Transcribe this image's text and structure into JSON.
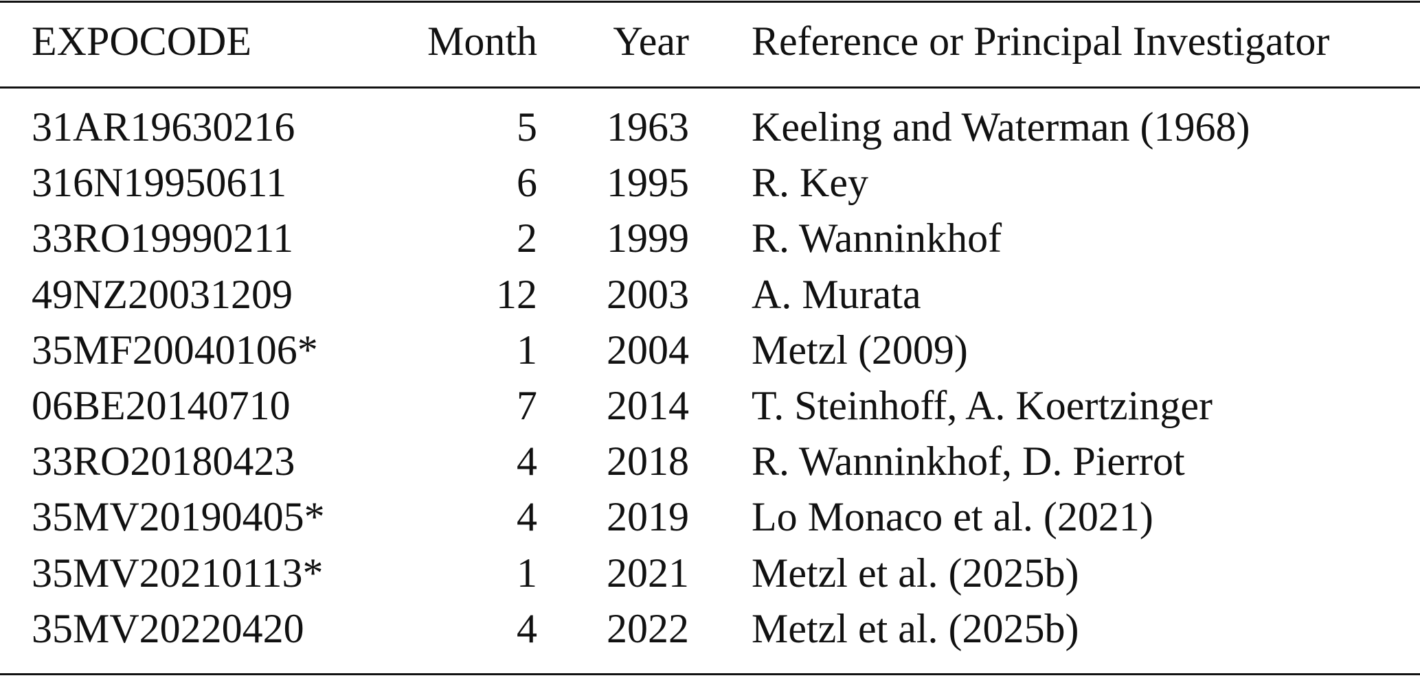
{
  "table": {
    "header": [
      "EXPOCODE",
      "Month",
      "Year",
      "Reference or Principal Investigator"
    ],
    "rows": [
      [
        "31AR19630216",
        5,
        1963,
        "Keeling and Waterman (1968)"
      ],
      [
        "316N19950611",
        6,
        1995,
        "R. Key"
      ],
      [
        "33RO19990211",
        2,
        1999,
        "R. Wanninkhof"
      ],
      [
        "49NZ20031209",
        12,
        2003,
        "A. Murata"
      ],
      [
        "35MF20040106*",
        1,
        2004,
        "Metzl (2009)"
      ],
      [
        "06BE20140710",
        7,
        2014,
        "T. Steinhoff, A. Koertzinger"
      ],
      [
        "33RO20180423",
        4,
        2018,
        "R. Wanninkhof, D. Pierrot"
      ],
      [
        "35MV20190405*",
        4,
        2019,
        "Lo Monaco et al. (2021)"
      ],
      [
        "35MV20210113*",
        1,
        2021,
        "Metzl et al. (2025b)"
      ],
      [
        "35MV20220420",
        4,
        2022,
        "Metzl et al. (2025b)"
      ]
    ]
  }
}
